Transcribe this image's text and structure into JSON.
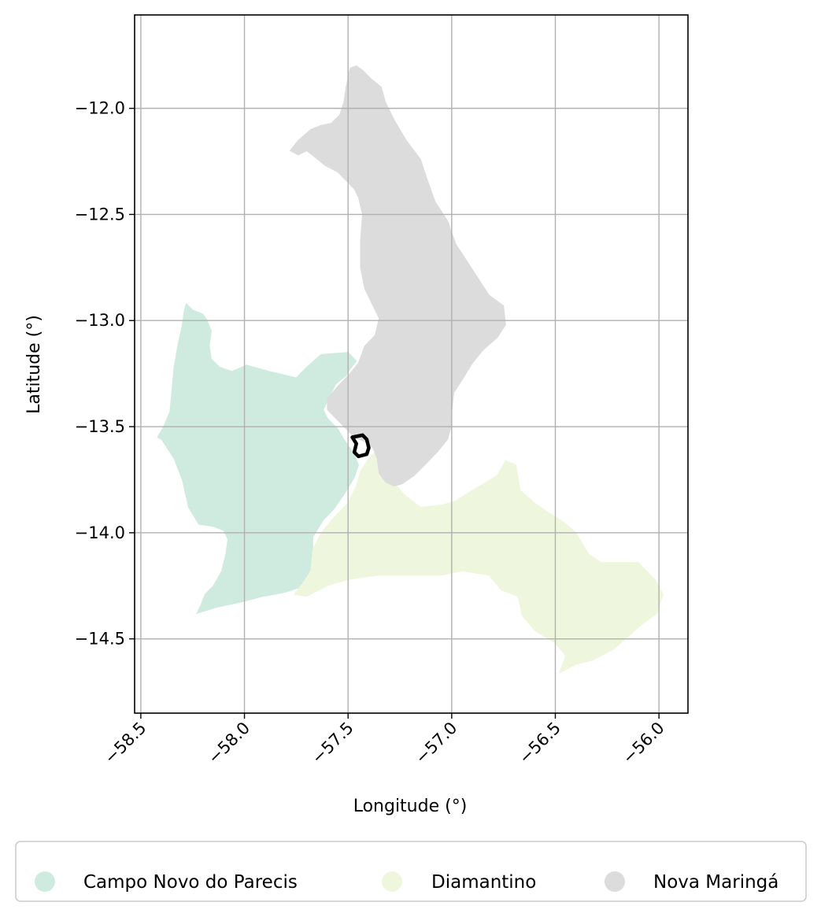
{
  "chart_data": {
    "type": "map",
    "xlabel": "Longitude (°)",
    "ylabel": "Latitude (°)",
    "xlim": [
      -58.53,
      -55.86
    ],
    "ylim": [
      -14.85,
      -11.56
    ],
    "grid": true,
    "x_ticks": [
      {
        "value": -58.5,
        "label": "−58.5"
      },
      {
        "value": -58.0,
        "label": "−58.0"
      },
      {
        "value": -57.5,
        "label": "−57.5"
      },
      {
        "value": -57.0,
        "label": "−57.0"
      },
      {
        "value": -56.5,
        "label": "−56.5"
      },
      {
        "value": -56.0,
        "label": "−56.0"
      }
    ],
    "y_ticks": [
      {
        "value": -12.0,
        "label": "−12.0"
      },
      {
        "value": -12.5,
        "label": "−12.5"
      },
      {
        "value": -13.0,
        "label": "−13.0"
      },
      {
        "value": -13.5,
        "label": "−13.5"
      },
      {
        "value": -14.0,
        "label": "−14.0"
      },
      {
        "value": -14.5,
        "label": "−14.5"
      }
    ],
    "legend_position": "bottom",
    "regions": [
      {
        "name": "Campo Novo do Parecis",
        "color": "#cfebdf",
        "boundary": [
          [
            -58.28,
            -12.92
          ],
          [
            -58.25,
            -12.95
          ],
          [
            -58.2,
            -12.97
          ],
          [
            -58.18,
            -13.0
          ],
          [
            -58.16,
            -13.05
          ],
          [
            -58.17,
            -13.12
          ],
          [
            -58.16,
            -13.18
          ],
          [
            -58.12,
            -13.22
          ],
          [
            -58.06,
            -13.24
          ],
          [
            -57.99,
            -13.21
          ],
          [
            -57.88,
            -13.24
          ],
          [
            -57.75,
            -13.27
          ],
          [
            -57.7,
            -13.22
          ],
          [
            -57.63,
            -13.16
          ],
          [
            -57.5,
            -13.15
          ],
          [
            -57.46,
            -13.19
          ],
          [
            -57.49,
            -13.23
          ],
          [
            -57.51,
            -13.26
          ],
          [
            -57.56,
            -13.3
          ],
          [
            -57.59,
            -13.36
          ],
          [
            -57.62,
            -13.42
          ],
          [
            -57.6,
            -13.46
          ],
          [
            -57.55,
            -13.51
          ],
          [
            -57.52,
            -13.56
          ],
          [
            -57.47,
            -13.63
          ],
          [
            -57.45,
            -13.68
          ],
          [
            -57.47,
            -13.74
          ],
          [
            -57.52,
            -13.82
          ],
          [
            -57.57,
            -13.89
          ],
          [
            -57.62,
            -13.94
          ],
          [
            -57.67,
            -14.02
          ],
          [
            -57.67,
            -14.1
          ],
          [
            -57.68,
            -14.2
          ],
          [
            -57.71,
            -14.25
          ],
          [
            -57.8,
            -14.28
          ],
          [
            -57.91,
            -14.3
          ],
          [
            -58.03,
            -14.33
          ],
          [
            -58.13,
            -14.35
          ],
          [
            -58.23,
            -14.38
          ],
          [
            -58.21,
            -14.34
          ],
          [
            -58.19,
            -14.29
          ],
          [
            -58.15,
            -14.25
          ],
          [
            -58.11,
            -14.18
          ],
          [
            -58.09,
            -14.1
          ],
          [
            -58.08,
            -14.03
          ],
          [
            -58.1,
            -13.99
          ],
          [
            -58.15,
            -13.97
          ],
          [
            -58.22,
            -13.96
          ],
          [
            -58.27,
            -13.88
          ],
          [
            -58.3,
            -13.75
          ],
          [
            -58.34,
            -13.65
          ],
          [
            -58.4,
            -13.56
          ],
          [
            -58.42,
            -13.55
          ],
          [
            -58.39,
            -13.5
          ],
          [
            -58.36,
            -13.43
          ],
          [
            -58.35,
            -13.33
          ],
          [
            -58.34,
            -13.22
          ],
          [
            -58.32,
            -13.11
          ],
          [
            -58.3,
            -13.02
          ],
          [
            -58.29,
            -12.95
          ]
        ]
      },
      {
        "name": "Diamantino",
        "color": "#eef7dd",
        "boundary": [
          [
            -57.35,
            -13.6
          ],
          [
            -57.28,
            -13.76
          ],
          [
            -57.23,
            -13.82
          ],
          [
            -57.15,
            -13.88
          ],
          [
            -57.05,
            -13.87
          ],
          [
            -56.98,
            -13.85
          ],
          [
            -56.9,
            -13.8
          ],
          [
            -56.78,
            -13.73
          ],
          [
            -56.74,
            -13.66
          ],
          [
            -56.69,
            -13.68
          ],
          [
            -56.67,
            -13.8
          ],
          [
            -56.6,
            -13.86
          ],
          [
            -56.54,
            -13.9
          ],
          [
            -56.46,
            -13.95
          ],
          [
            -56.4,
            -14.0
          ],
          [
            -56.34,
            -14.1
          ],
          [
            -56.28,
            -14.14
          ],
          [
            -56.1,
            -14.14
          ],
          [
            -56.02,
            -14.22
          ],
          [
            -55.98,
            -14.29
          ],
          [
            -56.01,
            -14.38
          ],
          [
            -56.08,
            -14.43
          ],
          [
            -56.15,
            -14.49
          ],
          [
            -56.22,
            -14.55
          ],
          [
            -56.32,
            -14.6
          ],
          [
            -56.4,
            -14.62
          ],
          [
            -56.48,
            -14.66
          ],
          [
            -56.45,
            -14.58
          ],
          [
            -56.5,
            -14.52
          ],
          [
            -56.6,
            -14.46
          ],
          [
            -56.66,
            -14.39
          ],
          [
            -56.68,
            -14.3
          ],
          [
            -56.76,
            -14.27
          ],
          [
            -56.82,
            -14.2
          ],
          [
            -56.95,
            -14.18
          ],
          [
            -57.05,
            -14.2
          ],
          [
            -57.2,
            -14.2
          ],
          [
            -57.35,
            -14.2
          ],
          [
            -57.5,
            -14.22
          ],
          [
            -57.6,
            -14.25
          ],
          [
            -57.7,
            -14.3
          ],
          [
            -57.76,
            -14.29
          ],
          [
            -57.72,
            -14.24
          ],
          [
            -57.68,
            -14.18
          ],
          [
            -57.67,
            -14.08
          ],
          [
            -57.63,
            -14.0
          ],
          [
            -57.57,
            -13.93
          ],
          [
            -57.5,
            -13.86
          ],
          [
            -57.46,
            -13.78
          ],
          [
            -57.44,
            -13.71
          ],
          [
            -57.4,
            -13.65
          ]
        ]
      },
      {
        "name": "Nova Maringá",
        "color": "#dcdcdc",
        "boundary": [
          [
            -57.49,
            -11.81
          ],
          [
            -57.46,
            -11.8
          ],
          [
            -57.43,
            -11.82
          ],
          [
            -57.39,
            -11.86
          ],
          [
            -57.34,
            -11.9
          ],
          [
            -57.32,
            -11.97
          ],
          [
            -57.28,
            -12.05
          ],
          [
            -57.22,
            -12.15
          ],
          [
            -57.15,
            -12.24
          ],
          [
            -57.12,
            -12.33
          ],
          [
            -57.08,
            -12.44
          ],
          [
            -57.02,
            -12.53
          ],
          [
            -56.98,
            -12.64
          ],
          [
            -56.9,
            -12.76
          ],
          [
            -56.82,
            -12.88
          ],
          [
            -56.75,
            -12.93
          ],
          [
            -56.74,
            -13.02
          ],
          [
            -56.78,
            -13.08
          ],
          [
            -56.85,
            -13.14
          ],
          [
            -56.9,
            -13.2
          ],
          [
            -56.95,
            -13.28
          ],
          [
            -56.99,
            -13.34
          ],
          [
            -57.0,
            -13.43
          ],
          [
            -57.0,
            -13.49
          ],
          [
            -57.02,
            -13.56
          ],
          [
            -57.07,
            -13.62
          ],
          [
            -57.13,
            -13.68
          ],
          [
            -57.18,
            -13.73
          ],
          [
            -57.24,
            -13.77
          ],
          [
            -57.28,
            -13.78
          ],
          [
            -57.32,
            -13.76
          ],
          [
            -57.35,
            -13.72
          ],
          [
            -57.36,
            -13.65
          ],
          [
            -57.38,
            -13.6
          ],
          [
            -57.42,
            -13.57
          ],
          [
            -57.47,
            -13.55
          ],
          [
            -57.52,
            -13.5
          ],
          [
            -57.56,
            -13.46
          ],
          [
            -57.6,
            -13.42
          ],
          [
            -57.6,
            -13.37
          ],
          [
            -57.55,
            -13.31
          ],
          [
            -57.5,
            -13.26
          ],
          [
            -57.45,
            -13.2
          ],
          [
            -57.42,
            -13.12
          ],
          [
            -57.37,
            -13.07
          ],
          [
            -57.35,
            -12.99
          ],
          [
            -57.38,
            -12.93
          ],
          [
            -57.42,
            -12.85
          ],
          [
            -57.44,
            -12.75
          ],
          [
            -57.44,
            -12.62
          ],
          [
            -57.43,
            -12.5
          ],
          [
            -57.45,
            -12.42
          ],
          [
            -57.47,
            -12.38
          ],
          [
            -57.5,
            -12.35
          ],
          [
            -57.55,
            -12.3
          ],
          [
            -57.61,
            -12.27
          ],
          [
            -57.66,
            -12.23
          ],
          [
            -57.7,
            -12.2
          ],
          [
            -57.74,
            -12.22
          ],
          [
            -57.78,
            -12.2
          ],
          [
            -57.74,
            -12.15
          ],
          [
            -57.68,
            -12.1
          ],
          [
            -57.63,
            -12.08
          ],
          [
            -57.58,
            -12.07
          ],
          [
            -57.54,
            -12.03
          ],
          [
            -57.52,
            -11.97
          ],
          [
            -57.51,
            -11.9
          ]
        ]
      }
    ],
    "highlight": {
      "name": "",
      "color": "#000000",
      "boundary": [
        [
          -57.48,
          -13.55
        ],
        [
          -57.43,
          -13.54
        ],
        [
          -57.41,
          -13.56
        ],
        [
          -57.4,
          -13.6
        ],
        [
          -57.41,
          -13.63
        ],
        [
          -57.45,
          -13.64
        ],
        [
          -57.47,
          -13.62
        ],
        [
          -57.46,
          -13.58
        ]
      ]
    }
  },
  "legend": {
    "items": [
      {
        "label": "Campo Novo do Parecis",
        "color": "#cfebdf"
      },
      {
        "label": "Diamantino",
        "color": "#eef7dd"
      },
      {
        "label": "Nova Maringá",
        "color": "#dcdcdc"
      }
    ]
  }
}
